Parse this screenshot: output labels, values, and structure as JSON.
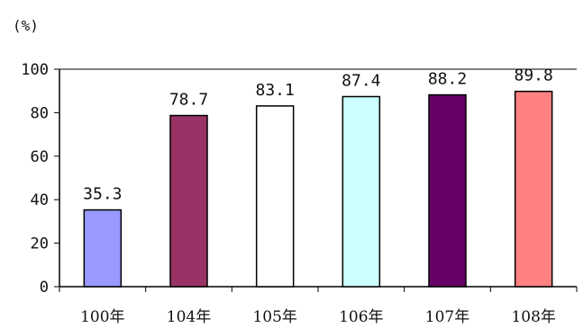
{
  "chart_data": {
    "type": "bar",
    "unit_label": "(%)",
    "categories": [
      "100年",
      "104年",
      "105年",
      "106年",
      "107年",
      "108年"
    ],
    "values": [
      35.3,
      78.7,
      83.1,
      87.4,
      88.2,
      89.8
    ],
    "value_labels": [
      "35.3",
      "78.7",
      "83.1",
      "87.4",
      "88.2",
      "89.8"
    ],
    "bar_colors": [
      "#9999ff",
      "#993366",
      "#ffffff",
      "#ccffff",
      "#660066",
      "#ff8080"
    ],
    "ylim": [
      0,
      100
    ],
    "yticks": [
      0,
      20,
      40,
      60,
      80,
      100
    ],
    "grid": false,
    "legend": "none"
  }
}
